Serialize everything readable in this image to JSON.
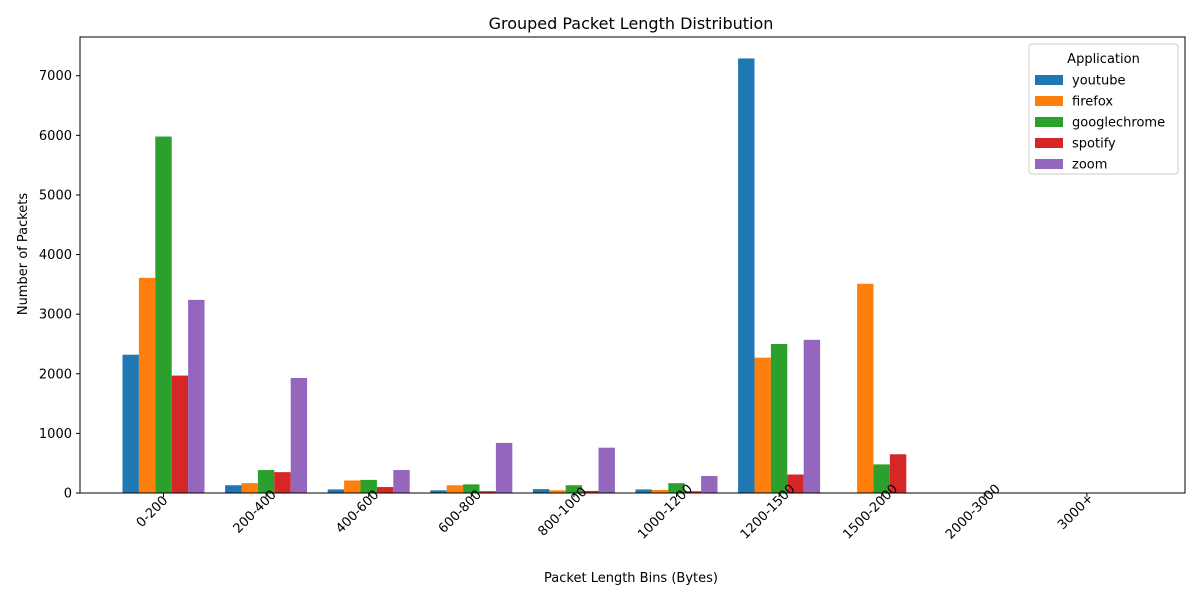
{
  "chart_data": {
    "type": "bar",
    "title": "Grouped Packet Length Distribution",
    "xlabel": "Packet Length Bins (Bytes)",
    "ylabel": "Number of Packets",
    "categories": [
      "0-200",
      "200-400",
      "400-600",
      "600-800",
      "800-1000",
      "1000-1200",
      "1200-1500",
      "1500-2000",
      "2000-3000",
      "3000+"
    ],
    "ylim": [
      0,
      7650
    ],
    "yticks": [
      0,
      1000,
      2000,
      3000,
      4000,
      5000,
      6000,
      7000
    ],
    "legend_title": "Application",
    "legend_position": "top-right",
    "grid": false,
    "series": [
      {
        "name": "youtube",
        "color": "#1f77b4",
        "values": [
          2320,
          130,
          60,
          45,
          65,
          60,
          7290,
          0,
          0,
          0
        ]
      },
      {
        "name": "firefox",
        "color": "#ff7f0e",
        "values": [
          3610,
          165,
          210,
          130,
          45,
          50,
          2270,
          3510,
          0,
          0
        ]
      },
      {
        "name": "googlechrome",
        "color": "#2ca02c",
        "values": [
          5980,
          385,
          220,
          145,
          130,
          165,
          2500,
          480,
          0,
          0
        ]
      },
      {
        "name": "spotify",
        "color": "#d62728",
        "values": [
          1970,
          350,
          100,
          30,
          35,
          30,
          310,
          650,
          0,
          0
        ]
      },
      {
        "name": "zoom",
        "color": "#9467bd",
        "values": [
          3240,
          1930,
          385,
          840,
          760,
          285,
          2570,
          0,
          0,
          0
        ]
      }
    ]
  }
}
